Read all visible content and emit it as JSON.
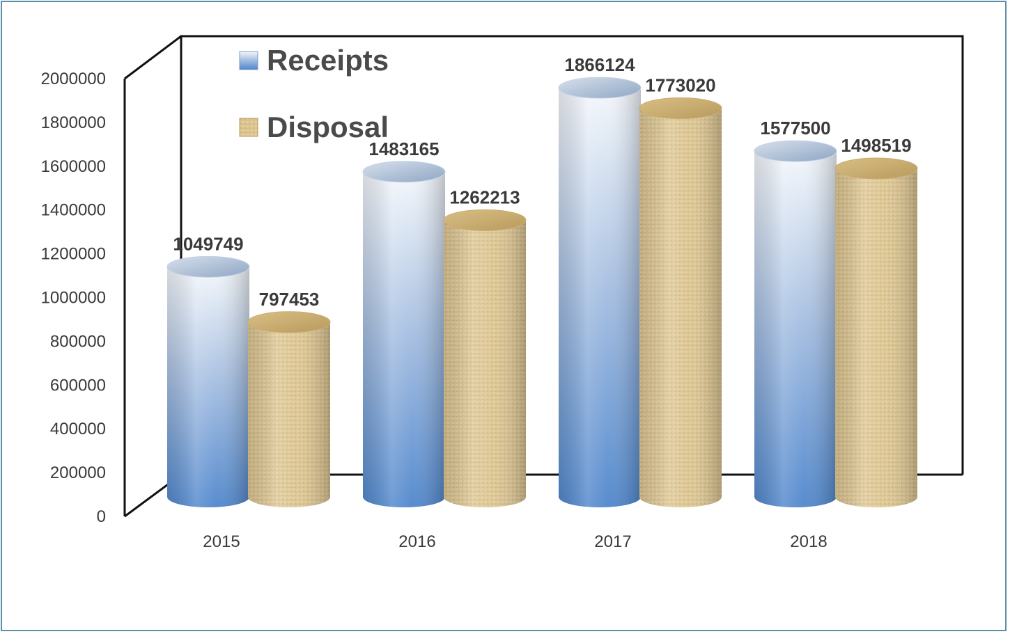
{
  "chart_data": {
    "type": "bar",
    "style": "3d-cylinder",
    "categories": [
      "2015",
      "2016",
      "2017",
      "2018"
    ],
    "series": [
      {
        "name": "Receipts",
        "values": [
          1049749,
          1483165,
          1866124,
          1577500
        ],
        "color": "#5b8fd0"
      },
      {
        "name": "Disposal",
        "values": [
          797453,
          1262213,
          1773020,
          1498519
        ],
        "color": "#d9c08a"
      }
    ],
    "ylim": [
      0,
      2000000
    ],
    "yticks": [
      "0",
      "200000",
      "400000",
      "600000",
      "800000",
      "1000000",
      "1200000",
      "1400000",
      "1600000",
      "1800000",
      "2000000"
    ],
    "data_labels": [
      [
        "1049749",
        "1483165",
        "1866124",
        "1577500"
      ],
      [
        "797453",
        "1262213",
        "1773020",
        "1498519"
      ]
    ],
    "legend": {
      "placement": "top-left",
      "entries": [
        "Receipts",
        "Disposal"
      ]
    },
    "grid": false
  }
}
